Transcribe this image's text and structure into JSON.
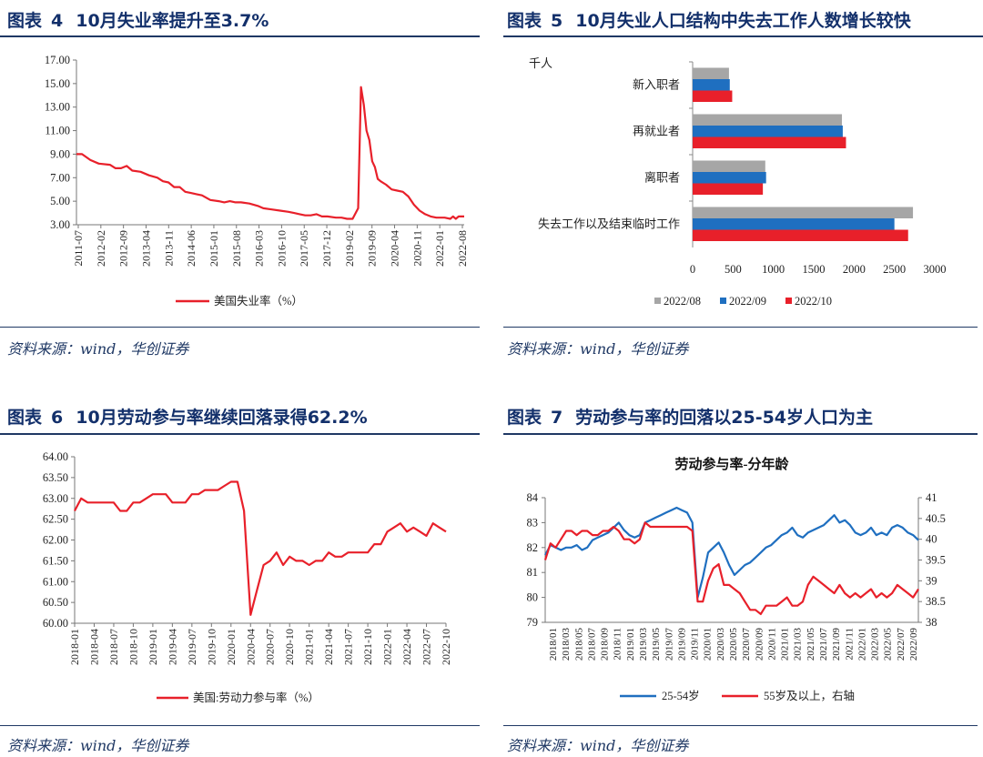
{
  "panels": [
    {
      "label": "图表",
      "number": "4",
      "title": "10月失业率提升至3.7%",
      "source": "资料来源：wind，华创证券"
    },
    {
      "label": "图表",
      "number": "5",
      "title": "10月失业人口结构中失去工作人数增长较快",
      "source": "资料来源：wind，华创证券"
    },
    {
      "label": "图表",
      "number": "6",
      "title": "10月劳动参与率继续回落录得62.2%",
      "source": "资料来源：wind，华创证券"
    },
    {
      "label": "图表",
      "number": "7",
      "title": "劳动参与率的回落以25-54岁人口为主",
      "source": "资料来源：wind，华创证券"
    }
  ],
  "colors": {
    "red": "#e8202a",
    "blue": "#1f6fc0",
    "gray": "#a6a6a6",
    "navy": "#1f3864"
  },
  "chart_data": [
    {
      "type": "line",
      "title": "10月失业率提升至3.7%",
      "legend": [
        "美国失业率（%）"
      ],
      "ylim": [
        3.0,
        17.0
      ],
      "yticks": [
        "3.00",
        "5.00",
        "7.00",
        "9.00",
        "11.00",
        "13.00",
        "15.00",
        "17.00"
      ],
      "xticks": [
        "2011-07",
        "2012-02",
        "2012-09",
        "2013-04",
        "2013-11",
        "2014-06",
        "2015-01",
        "2015-08",
        "2016-03",
        "2016-10",
        "2017-05",
        "2017-12",
        "2019-02",
        "2019-09",
        "2020-04",
        "2020-11",
        "2022-01",
        "2022-08"
      ],
      "x_count": 140,
      "points": [
        [
          0,
          9.0
        ],
        [
          2,
          9.0
        ],
        [
          5,
          8.5
        ],
        [
          8,
          8.2
        ],
        [
          12,
          8.1
        ],
        [
          14,
          7.8
        ],
        [
          16,
          7.8
        ],
        [
          18,
          8.0
        ],
        [
          20,
          7.6
        ],
        [
          23,
          7.5
        ],
        [
          26,
          7.2
        ],
        [
          29,
          7.0
        ],
        [
          31,
          6.7
        ],
        [
          33,
          6.6
        ],
        [
          35,
          6.2
        ],
        [
          37,
          6.2
        ],
        [
          39,
          5.8
        ],
        [
          41,
          5.7
        ],
        [
          43,
          5.6
        ],
        [
          45,
          5.5
        ],
        [
          48,
          5.1
        ],
        [
          51,
          5.0
        ],
        [
          53,
          4.9
        ],
        [
          55,
          5.0
        ],
        [
          57,
          4.9
        ],
        [
          59,
          4.9
        ],
        [
          62,
          4.8
        ],
        [
          65,
          4.6
        ],
        [
          67,
          4.4
        ],
        [
          70,
          4.3
        ],
        [
          73,
          4.2
        ],
        [
          76,
          4.1
        ],
        [
          78,
          4.0
        ],
        [
          80,
          3.9
        ],
        [
          82,
          3.8
        ],
        [
          84,
          3.8
        ],
        [
          86,
          3.9
        ],
        [
          88,
          3.7
        ],
        [
          90,
          3.7
        ],
        [
          93,
          3.6
        ],
        [
          95,
          3.6
        ],
        [
          97,
          3.5
        ],
        [
          99,
          3.5
        ],
        [
          101,
          4.4
        ],
        [
          102,
          14.7
        ],
        [
          103,
          13.2
        ],
        [
          104,
          11.0
        ],
        [
          105,
          10.2
        ],
        [
          106,
          8.4
        ],
        [
          107,
          7.9
        ],
        [
          108,
          6.9
        ],
        [
          109,
          6.7
        ],
        [
          111,
          6.4
        ],
        [
          113,
          6.0
        ],
        [
          115,
          5.9
        ],
        [
          117,
          5.8
        ],
        [
          119,
          5.4
        ],
        [
          121,
          4.7
        ],
        [
          123,
          4.2
        ],
        [
          125,
          3.9
        ],
        [
          127,
          3.7
        ],
        [
          129,
          3.6
        ],
        [
          132,
          3.6
        ],
        [
          134,
          3.5
        ],
        [
          135,
          3.7
        ],
        [
          136,
          3.5
        ],
        [
          137,
          3.7
        ],
        [
          139,
          3.7
        ]
      ]
    },
    {
      "type": "bar",
      "orientation": "horizontal",
      "unit_label": "千人",
      "categories": [
        "新入职者",
        "再就业者",
        "离职者",
        "失去工作以及结束临时工作"
      ],
      "xlim": [
        0,
        3000
      ],
      "xticks": [
        "0",
        "500",
        "1000",
        "1500",
        "2000",
        "2500",
        "3000"
      ],
      "series": [
        {
          "name": "2022/08",
          "values": [
            450,
            1850,
            900,
            2730
          ]
        },
        {
          "name": "2022/09",
          "values": [
            460,
            1860,
            910,
            2500
          ]
        },
        {
          "name": "2022/10",
          "values": [
            490,
            1900,
            870,
            2670
          ]
        }
      ]
    },
    {
      "type": "line",
      "title": "10月劳动参与率继续回落录得62.2%",
      "legend": [
        "美国:劳动力参与率（%）"
      ],
      "ylim": [
        60.0,
        64.0
      ],
      "yticks": [
        "60.00",
        "60.50",
        "61.00",
        "61.50",
        "62.00",
        "62.50",
        "63.00",
        "63.50",
        "64.00"
      ],
      "xticks": [
        "2018-01",
        "2018-04",
        "2018-07",
        "2018-10",
        "2019-01",
        "2019-04",
        "2019-07",
        "2019-10",
        "2020-01",
        "2020-04",
        "2020-07",
        "2020-10",
        "2021-01",
        "2021-04",
        "2021-07",
        "2021-10",
        "2022-01",
        "2022-04",
        "2022-07",
        "2022-10"
      ],
      "values": [
        62.7,
        63.0,
        62.9,
        62.9,
        62.9,
        62.9,
        62.9,
        62.7,
        62.7,
        62.9,
        62.9,
        63.0,
        63.1,
        63.1,
        63.1,
        62.9,
        62.9,
        62.9,
        63.1,
        63.1,
        63.2,
        63.2,
        63.2,
        63.3,
        63.4,
        63.4,
        62.7,
        60.2,
        60.8,
        61.4,
        61.5,
        61.7,
        61.4,
        61.6,
        61.5,
        61.5,
        61.4,
        61.5,
        61.5,
        61.7,
        61.6,
        61.6,
        61.7,
        61.7,
        61.7,
        61.7,
        61.9,
        61.9,
        62.2,
        62.3,
        62.4,
        62.2,
        62.3,
        62.2,
        62.1,
        62.4,
        62.3,
        62.2
      ]
    },
    {
      "type": "line",
      "title": "劳动参与率-分年龄",
      "ylim_left": [
        79,
        84
      ],
      "ylim_right": [
        38,
        41
      ],
      "yticks_left": [
        "79",
        "80",
        "81",
        "82",
        "83",
        "84"
      ],
      "yticks_right": [
        "38",
        "38.5",
        "39",
        "39.5",
        "40",
        "40.5",
        "41"
      ],
      "xticks": [
        "2018/01",
        "2018/03",
        "2018/05",
        "2018/07",
        "2018/09",
        "2018/11",
        "2019/01",
        "2019/03",
        "2019/05",
        "2019/07",
        "2019/09",
        "2019/11",
        "2020/01",
        "2020/03",
        "2020/05",
        "2020/07",
        "2020/09",
        "2020/11",
        "2021/01",
        "2021/03",
        "2021/05",
        "2021/07",
        "2021/09",
        "2021/11",
        "2022/01",
        "2022/03",
        "2022/05",
        "2022/07",
        "2022/09"
      ],
      "series": [
        {
          "name": "25-54岁",
          "axis": "left",
          "values": [
            81.7,
            82.1,
            82.0,
            81.9,
            82.0,
            82.0,
            82.1,
            81.9,
            82.0,
            82.3,
            82.4,
            82.5,
            82.6,
            82.8,
            83.0,
            82.7,
            82.5,
            82.4,
            82.5,
            83.0,
            83.1,
            83.2,
            83.3,
            83.4,
            83.5,
            83.6,
            83.5,
            83.4,
            83.0,
            80.0,
            80.8,
            81.8,
            82.0,
            82.2,
            81.8,
            81.3,
            80.9,
            81.1,
            81.3,
            81.4,
            81.6,
            81.8,
            82.0,
            82.1,
            82.3,
            82.5,
            82.6,
            82.8,
            82.5,
            82.4,
            82.6,
            82.7,
            82.8,
            82.9,
            83.1,
            83.3,
            83.0,
            83.1,
            82.9,
            82.6,
            82.5,
            82.6,
            82.8,
            82.5,
            82.6,
            82.5,
            82.8,
            82.9,
            82.8,
            82.6,
            82.5,
            82.3
          ]
        },
        {
          "name": "55岁及以上，右轴",
          "axis": "right",
          "values": [
            39.5,
            39.9,
            39.8,
            40.0,
            40.2,
            40.2,
            40.1,
            40.2,
            40.2,
            40.1,
            40.1,
            40.2,
            40.2,
            40.3,
            40.2,
            40.0,
            40.0,
            39.9,
            40.0,
            40.4,
            40.3,
            40.3,
            40.3,
            40.3,
            40.3,
            40.3,
            40.3,
            40.3,
            40.2,
            38.5,
            38.5,
            39.0,
            39.3,
            39.4,
            38.9,
            38.9,
            38.8,
            38.7,
            38.5,
            38.3,
            38.3,
            38.2,
            38.4,
            38.4,
            38.4,
            38.5,
            38.6,
            38.4,
            38.4,
            38.5,
            38.9,
            39.1,
            39.0,
            38.9,
            38.8,
            38.7,
            38.9,
            38.7,
            38.6,
            38.7,
            38.6,
            38.7,
            38.8,
            38.6,
            38.7,
            38.6,
            38.7,
            38.9,
            38.8,
            38.7,
            38.6,
            38.8
          ]
        }
      ]
    }
  ]
}
